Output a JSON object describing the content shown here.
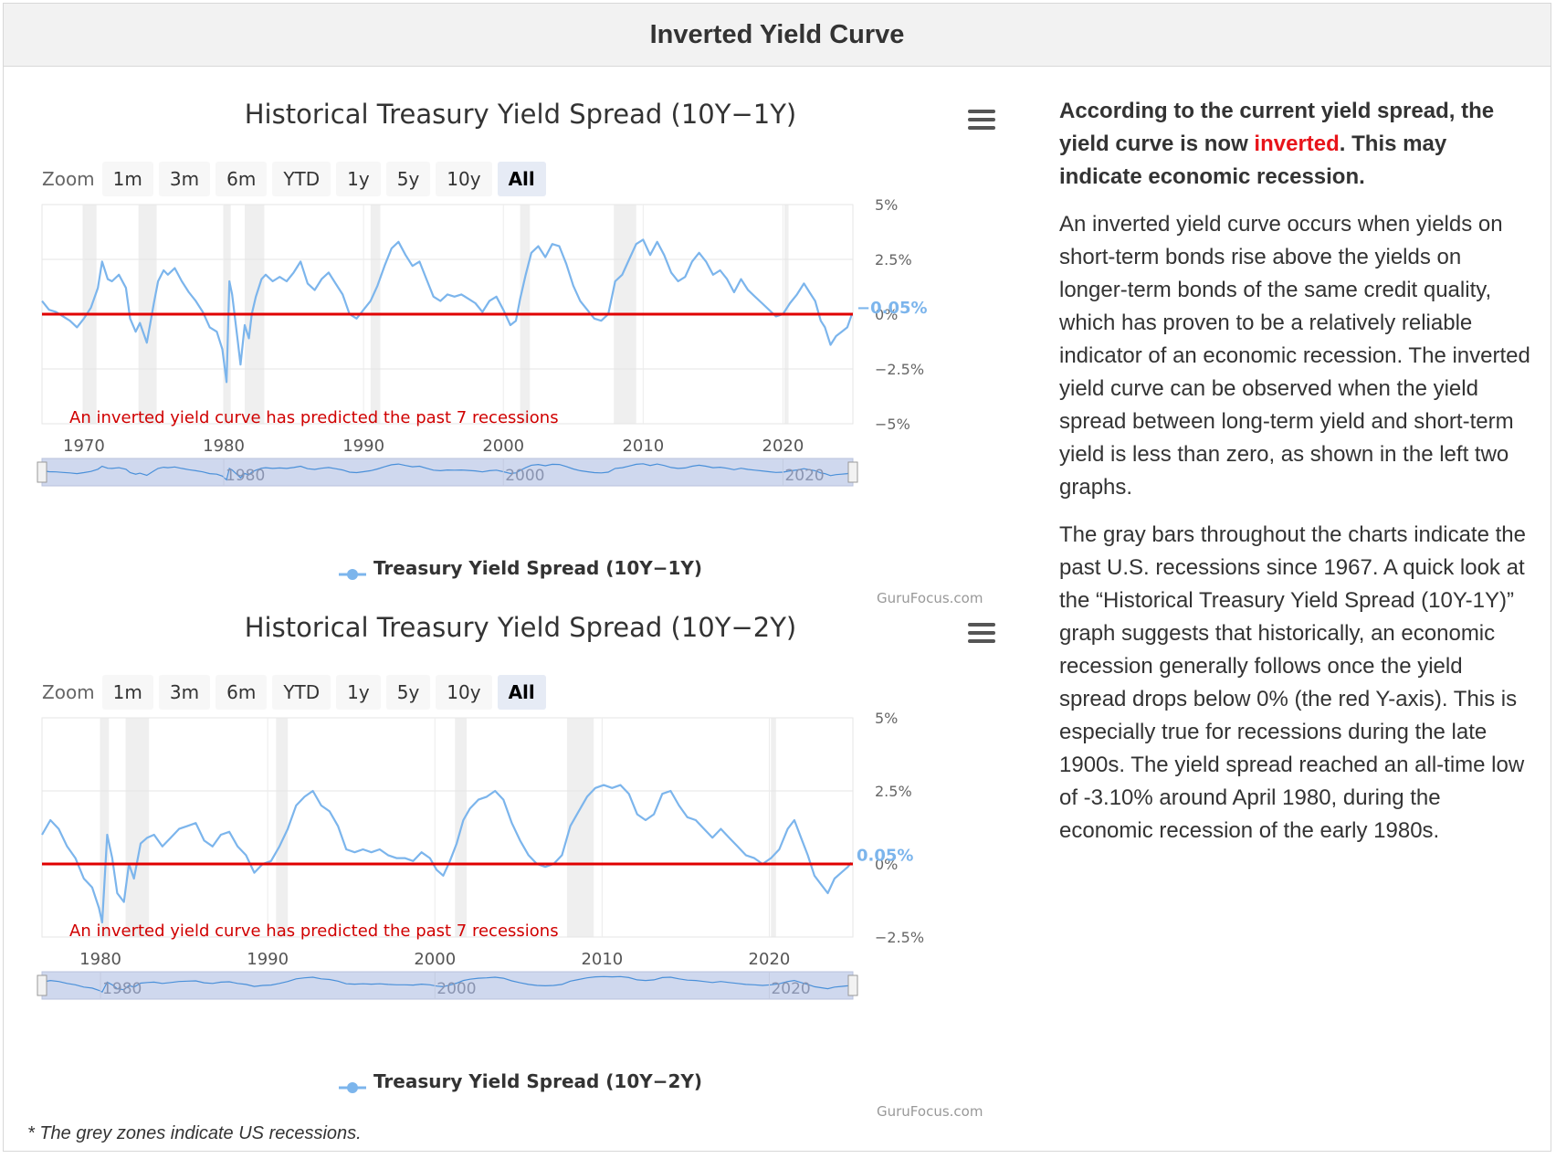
{
  "page": {
    "title": "Inverted Yield Curve",
    "footnote": "* The grey zones indicate US recessions."
  },
  "zoom": {
    "label": "Zoom",
    "buttons": [
      "1m",
      "3m",
      "6m",
      "YTD",
      "1y",
      "5y",
      "10y",
      "All"
    ],
    "selected": "All"
  },
  "sidebar": {
    "lead_pre": "According to the current yield spread, the yield curve is now ",
    "lead_highlight": "inverted",
    "lead_post": ". This may indicate economic recession.",
    "para1": "An inverted yield curve occurs when yields on short-term bonds rise above the yields on longer-term bonds of the same credit quality, which has proven to be a relatively reliable indicator of an economic recession. The inverted yield curve can be observed when the yield spread between long-term yield and short-term yield is less than zero, as shown in the left two graphs.",
    "para2": "The gray bars throughout the charts indicate the past U.S. recessions since 1967. A quick look at the “Historical Treasury Yield Spread (10Y-1Y)” graph suggests that historically, an economic recession generally follows once the yield spread drops below 0% (the red Y-axis). This is especially true for recessions during the late 1900s. The yield spread reached an all-time low of -3.10% around April 1980, during the economic recession of the early 1980s."
  },
  "colors": {
    "series": "#7cb5ec",
    "zero_line": "#e00000",
    "annotation": "#d00000",
    "recession_band": "#efefef",
    "navigator_fill": "#cfd8ee"
  },
  "chart_data": [
    {
      "type": "line",
      "title": "Historical Treasury Yield Spread (10Y−1Y)",
      "series_name": "Treasury Yield Spread (10Y−1Y)",
      "current_label": "−0.05%",
      "annotation": "An inverted yield curve has predicted the past 7 recessions",
      "credits": "GuruFocus.com",
      "x_range": [
        1967,
        2025
      ],
      "ylim": [
        -5,
        5
      ],
      "y_ticks": [
        {
          "v": 5,
          "label": "5%"
        },
        {
          "v": 2.5,
          "label": "2.5%"
        },
        {
          "v": 0,
          "label": "0%"
        },
        {
          "v": -2.5,
          "label": "−2.5%"
        },
        {
          "v": -5,
          "label": "−5%"
        }
      ],
      "x_ticks": [
        1970,
        1980,
        1990,
        2000,
        2010,
        2020
      ],
      "nav_ticks": [
        1980,
        2000,
        2020
      ],
      "recessions": [
        [
          1969.9,
          1970.9
        ],
        [
          1973.9,
          1975.2
        ],
        [
          1980.0,
          1980.5
        ],
        [
          1981.5,
          1982.9
        ],
        [
          1990.5,
          1991.2
        ],
        [
          2001.2,
          2001.9
        ],
        [
          2007.9,
          2009.5
        ],
        [
          2020.1,
          2020.4
        ]
      ],
      "points": [
        [
          1967.0,
          0.6
        ],
        [
          1967.5,
          0.2
        ],
        [
          1968.0,
          0.1
        ],
        [
          1968.5,
          -0.1
        ],
        [
          1969.0,
          -0.3
        ],
        [
          1969.5,
          -0.6
        ],
        [
          1970.0,
          -0.2
        ],
        [
          1970.5,
          0.3
        ],
        [
          1971.0,
          1.2
        ],
        [
          1971.3,
          2.4
        ],
        [
          1971.7,
          1.6
        ],
        [
          1972.0,
          1.5
        ],
        [
          1972.5,
          1.8
        ],
        [
          1973.0,
          1.2
        ],
        [
          1973.3,
          -0.2
        ],
        [
          1973.7,
          -0.8
        ],
        [
          1974.0,
          -0.4
        ],
        [
          1974.5,
          -1.3
        ],
        [
          1975.0,
          0.5
        ],
        [
          1975.3,
          1.5
        ],
        [
          1975.7,
          2.0
        ],
        [
          1976.0,
          1.8
        ],
        [
          1976.5,
          2.1
        ],
        [
          1977.0,
          1.5
        ],
        [
          1977.5,
          1.0
        ],
        [
          1978.0,
          0.6
        ],
        [
          1978.5,
          0.1
        ],
        [
          1979.0,
          -0.6
        ],
        [
          1979.5,
          -0.8
        ],
        [
          1979.9,
          -1.6
        ],
        [
          1980.2,
          -3.1
        ],
        [
          1980.4,
          1.5
        ],
        [
          1980.6,
          0.9
        ],
        [
          1981.0,
          -1.2
        ],
        [
          1981.2,
          -2.3
        ],
        [
          1981.5,
          -0.5
        ],
        [
          1981.8,
          -1.1
        ],
        [
          1982.0,
          0.0
        ],
        [
          1982.3,
          0.8
        ],
        [
          1982.7,
          1.6
        ],
        [
          1983.0,
          1.8
        ],
        [
          1983.5,
          1.5
        ],
        [
          1984.0,
          1.7
        ],
        [
          1984.5,
          1.5
        ],
        [
          1985.0,
          1.9
        ],
        [
          1985.5,
          2.4
        ],
        [
          1986.0,
          1.4
        ],
        [
          1986.5,
          1.1
        ],
        [
          1987.0,
          1.6
        ],
        [
          1987.5,
          1.9
        ],
        [
          1988.0,
          1.4
        ],
        [
          1988.5,
          0.9
        ],
        [
          1989.0,
          0.0
        ],
        [
          1989.5,
          -0.2
        ],
        [
          1990.0,
          0.2
        ],
        [
          1990.5,
          0.6
        ],
        [
          1991.0,
          1.3
        ],
        [
          1991.5,
          2.2
        ],
        [
          1992.0,
          3.0
        ],
        [
          1992.5,
          3.3
        ],
        [
          1993.0,
          2.7
        ],
        [
          1993.5,
          2.2
        ],
        [
          1994.0,
          2.4
        ],
        [
          1994.5,
          1.6
        ],
        [
          1995.0,
          0.8
        ],
        [
          1995.5,
          0.6
        ],
        [
          1996.0,
          0.9
        ],
        [
          1996.5,
          0.8
        ],
        [
          1997.0,
          0.9
        ],
        [
          1997.5,
          0.7
        ],
        [
          1998.0,
          0.5
        ],
        [
          1998.5,
          0.1
        ],
        [
          1999.0,
          0.6
        ],
        [
          1999.5,
          0.8
        ],
        [
          2000.0,
          0.2
        ],
        [
          2000.5,
          -0.5
        ],
        [
          2000.9,
          -0.3
        ],
        [
          2001.2,
          0.7
        ],
        [
          2001.6,
          1.8
        ],
        [
          2002.0,
          2.8
        ],
        [
          2002.5,
          3.1
        ],
        [
          2003.0,
          2.6
        ],
        [
          2003.5,
          3.2
        ],
        [
          2004.0,
          3.1
        ],
        [
          2004.5,
          2.3
        ],
        [
          2005.0,
          1.3
        ],
        [
          2005.5,
          0.6
        ],
        [
          2006.0,
          0.2
        ],
        [
          2006.5,
          -0.2
        ],
        [
          2007.0,
          -0.3
        ],
        [
          2007.5,
          0.0
        ],
        [
          2008.0,
          1.5
        ],
        [
          2008.5,
          1.8
        ],
        [
          2009.0,
          2.5
        ],
        [
          2009.5,
          3.2
        ],
        [
          2010.0,
          3.4
        ],
        [
          2010.5,
          2.7
        ],
        [
          2011.0,
          3.3
        ],
        [
          2011.5,
          2.7
        ],
        [
          2012.0,
          1.9
        ],
        [
          2012.5,
          1.5
        ],
        [
          2013.0,
          1.7
        ],
        [
          2013.5,
          2.4
        ],
        [
          2014.0,
          2.8
        ],
        [
          2014.5,
          2.4
        ],
        [
          2015.0,
          1.8
        ],
        [
          2015.5,
          2.0
        ],
        [
          2016.0,
          1.6
        ],
        [
          2016.5,
          1.0
        ],
        [
          2017.0,
          1.6
        ],
        [
          2017.5,
          1.1
        ],
        [
          2018.0,
          0.8
        ],
        [
          2018.5,
          0.5
        ],
        [
          2019.0,
          0.2
        ],
        [
          2019.5,
          -0.1
        ],
        [
          2020.0,
          0.0
        ],
        [
          2020.5,
          0.5
        ],
        [
          2021.0,
          0.9
        ],
        [
          2021.5,
          1.4
        ],
        [
          2021.9,
          1.0
        ],
        [
          2022.3,
          0.6
        ],
        [
          2022.7,
          -0.3
        ],
        [
          2023.0,
          -0.6
        ],
        [
          2023.4,
          -1.4
        ],
        [
          2023.8,
          -1.0
        ],
        [
          2024.2,
          -0.8
        ],
        [
          2024.6,
          -0.6
        ],
        [
          2024.9,
          -0.05
        ]
      ]
    },
    {
      "type": "line",
      "title": "Historical Treasury Yield Spread (10Y−2Y)",
      "series_name": "Treasury Yield Spread (10Y−2Y)",
      "current_label": "0.05%",
      "annotation": "An inverted yield curve has predicted the past 7 recessions",
      "credits": "GuruFocus.com",
      "x_range": [
        1976.5,
        2025
      ],
      "ylim": [
        -2.5,
        5
      ],
      "y_ticks": [
        {
          "v": 5,
          "label": "5%"
        },
        {
          "v": 2.5,
          "label": "2.5%"
        },
        {
          "v": 0,
          "label": "0%"
        },
        {
          "v": -2.5,
          "label": "−2.5%"
        }
      ],
      "x_ticks": [
        1980,
        1990,
        2000,
        2010,
        2020
      ],
      "nav_ticks": [
        1980,
        2000,
        2020
      ],
      "recessions": [
        [
          1980.0,
          1980.5
        ],
        [
          1981.5,
          1982.9
        ],
        [
          1990.5,
          1991.2
        ],
        [
          2001.2,
          2001.9
        ],
        [
          2007.9,
          2009.5
        ],
        [
          2020.1,
          2020.4
        ]
      ],
      "points": [
        [
          1976.5,
          1.0
        ],
        [
          1977.0,
          1.5
        ],
        [
          1977.5,
          1.2
        ],
        [
          1978.0,
          0.6
        ],
        [
          1978.5,
          0.2
        ],
        [
          1979.0,
          -0.5
        ],
        [
          1979.5,
          -0.8
        ],
        [
          1979.9,
          -1.5
        ],
        [
          1980.1,
          -2.0
        ],
        [
          1980.4,
          1.0
        ],
        [
          1980.7,
          0.2
        ],
        [
          1981.0,
          -1.0
        ],
        [
          1981.4,
          -1.3
        ],
        [
          1981.7,
          0.0
        ],
        [
          1982.0,
          -0.5
        ],
        [
          1982.4,
          0.7
        ],
        [
          1982.8,
          0.9
        ],
        [
          1983.2,
          1.0
        ],
        [
          1983.7,
          0.6
        ],
        [
          1984.2,
          0.9
        ],
        [
          1984.7,
          1.2
        ],
        [
          1985.2,
          1.3
        ],
        [
          1985.7,
          1.4
        ],
        [
          1986.2,
          0.8
        ],
        [
          1986.7,
          0.6
        ],
        [
          1987.2,
          1.0
        ],
        [
          1987.7,
          1.1
        ],
        [
          1988.2,
          0.6
        ],
        [
          1988.7,
          0.3
        ],
        [
          1989.2,
          -0.3
        ],
        [
          1989.7,
          0.0
        ],
        [
          1990.2,
          0.1
        ],
        [
          1990.7,
          0.6
        ],
        [
          1991.2,
          1.2
        ],
        [
          1991.7,
          2.0
        ],
        [
          1992.2,
          2.3
        ],
        [
          1992.7,
          2.5
        ],
        [
          1993.2,
          2.0
        ],
        [
          1993.7,
          1.8
        ],
        [
          1994.2,
          1.3
        ],
        [
          1994.7,
          0.5
        ],
        [
          1995.2,
          0.4
        ],
        [
          1995.7,
          0.5
        ],
        [
          1996.2,
          0.4
        ],
        [
          1996.7,
          0.5
        ],
        [
          1997.2,
          0.3
        ],
        [
          1997.7,
          0.2
        ],
        [
          1998.2,
          0.2
        ],
        [
          1998.7,
          0.1
        ],
        [
          1999.2,
          0.4
        ],
        [
          1999.7,
          0.2
        ],
        [
          2000.1,
          -0.2
        ],
        [
          2000.5,
          -0.4
        ],
        [
          2000.9,
          0.1
        ],
        [
          2001.3,
          0.7
        ],
        [
          2001.7,
          1.5
        ],
        [
          2002.1,
          1.9
        ],
        [
          2002.6,
          2.2
        ],
        [
          2003.1,
          2.3
        ],
        [
          2003.6,
          2.5
        ],
        [
          2004.1,
          2.2
        ],
        [
          2004.6,
          1.4
        ],
        [
          2005.1,
          0.8
        ],
        [
          2005.6,
          0.3
        ],
        [
          2006.1,
          0.0
        ],
        [
          2006.6,
          -0.1
        ],
        [
          2007.1,
          0.0
        ],
        [
          2007.6,
          0.3
        ],
        [
          2008.1,
          1.3
        ],
        [
          2008.6,
          1.8
        ],
        [
          2009.1,
          2.3
        ],
        [
          2009.6,
          2.6
        ],
        [
          2010.1,
          2.7
        ],
        [
          2010.6,
          2.6
        ],
        [
          2011.1,
          2.7
        ],
        [
          2011.6,
          2.4
        ],
        [
          2012.1,
          1.7
        ],
        [
          2012.6,
          1.5
        ],
        [
          2013.1,
          1.7
        ],
        [
          2013.6,
          2.4
        ],
        [
          2014.1,
          2.5
        ],
        [
          2014.6,
          2.0
        ],
        [
          2015.1,
          1.6
        ],
        [
          2015.6,
          1.5
        ],
        [
          2016.1,
          1.2
        ],
        [
          2016.6,
          0.9
        ],
        [
          2017.1,
          1.2
        ],
        [
          2017.6,
          0.9
        ],
        [
          2018.1,
          0.6
        ],
        [
          2018.6,
          0.3
        ],
        [
          2019.1,
          0.2
        ],
        [
          2019.6,
          0.0
        ],
        [
          2020.1,
          0.2
        ],
        [
          2020.6,
          0.5
        ],
        [
          2021.1,
          1.2
        ],
        [
          2021.5,
          1.5
        ],
        [
          2021.9,
          0.9
        ],
        [
          2022.3,
          0.3
        ],
        [
          2022.7,
          -0.4
        ],
        [
          2023.1,
          -0.7
        ],
        [
          2023.5,
          -1.0
        ],
        [
          2023.9,
          -0.5
        ],
        [
          2024.3,
          -0.3
        ],
        [
          2024.7,
          -0.1
        ],
        [
          2024.9,
          0.05
        ]
      ]
    }
  ]
}
